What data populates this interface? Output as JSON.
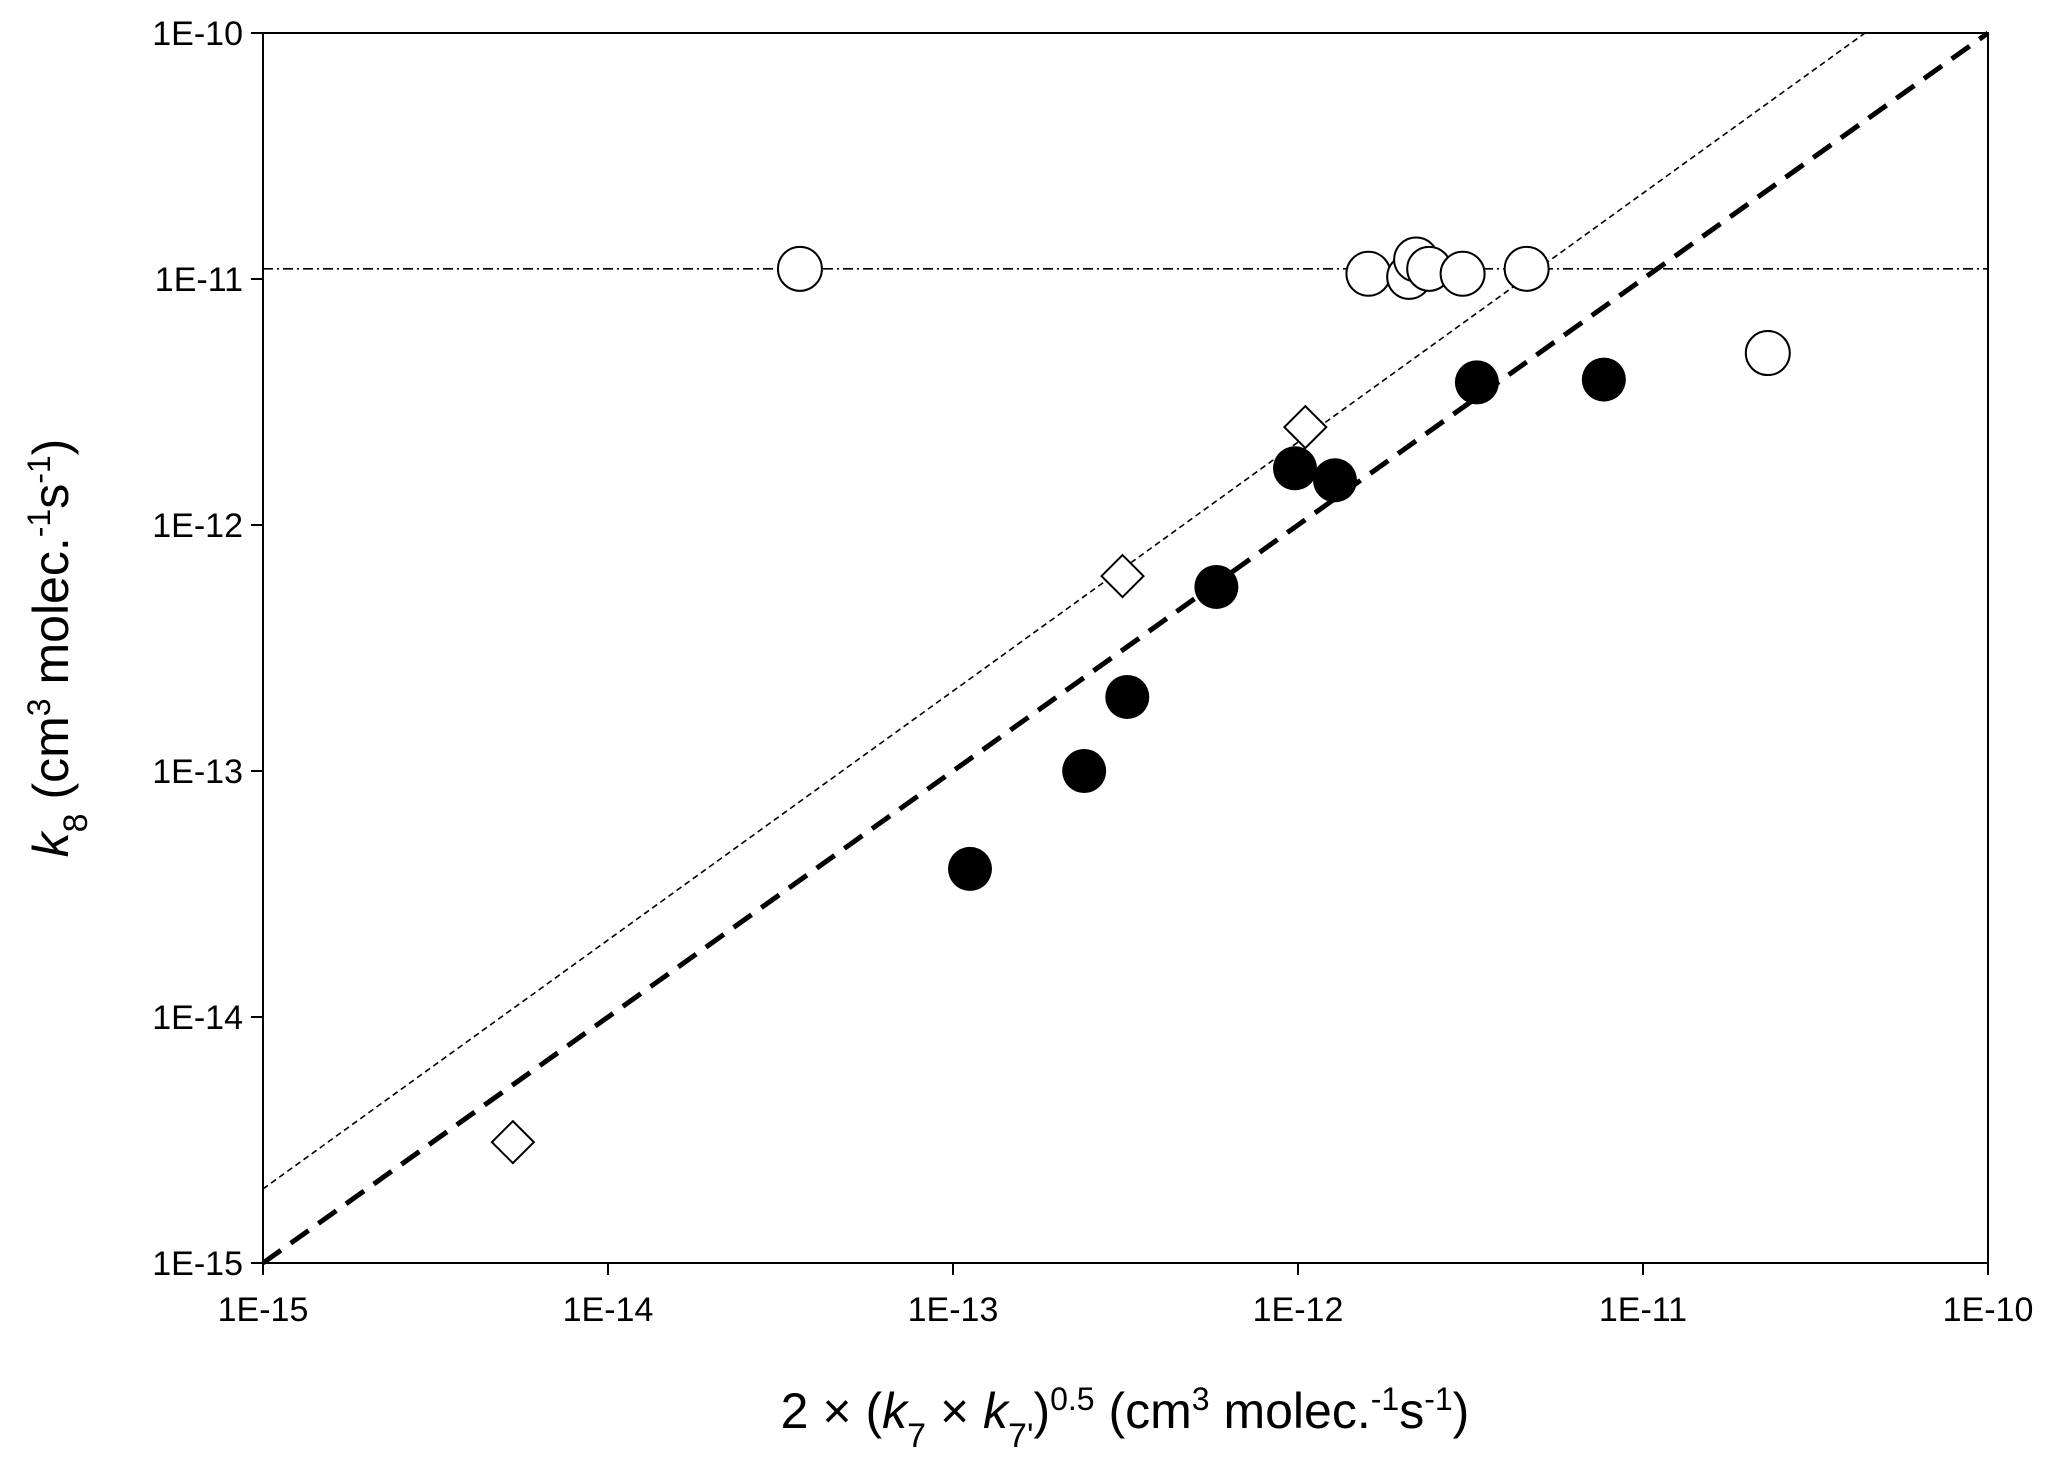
{
  "chart_data": {
    "type": "scatter",
    "title": "",
    "xscale": "log",
    "yscale": "log",
    "xlim": [
      1e-15,
      1e-10
    ],
    "ylim": [
      1e-15,
      1e-10
    ],
    "grid": false,
    "legend": "none",
    "xlabel": {
      "prefix": "2 × (",
      "k7": "k",
      "k7_sub": "7",
      "times": " × ",
      "k7p": "k",
      "k7p_sub": "7'",
      "close": ")",
      "exp": "0.5",
      "units_open": " (cm",
      "units_exp3": "3",
      "units_mid": " molec.",
      "units_exp_m1a": "-1",
      "units_s": "s",
      "units_exp_m1b": "-1",
      "units_close": ")"
    },
    "ylabel": {
      "k": "k",
      "k_sub": "8",
      "units_open": " (cm",
      "units_exp3": "3",
      "units_mid": " molec.",
      "units_exp_m1a": "-1",
      "units_s": "s",
      "units_exp_m1b": "-1",
      "units_close": ")"
    },
    "xticks": [
      {
        "value": 1e-15,
        "label": "1E-15"
      },
      {
        "value": 1e-14,
        "label": "1E-14"
      },
      {
        "value": 1e-13,
        "label": "1E-13"
      },
      {
        "value": 1e-12,
        "label": "1E-12"
      },
      {
        "value": 1e-11,
        "label": "1E-11"
      },
      {
        "value": 1e-10,
        "label": "1E-10"
      }
    ],
    "yticks": [
      {
        "value": 1e-15,
        "label": "1E-15"
      },
      {
        "value": 1e-14,
        "label": "1E-14"
      },
      {
        "value": 1e-13,
        "label": "1E-13"
      },
      {
        "value": 1e-12,
        "label": "1E-12"
      },
      {
        "value": 1e-11,
        "label": "1E-11"
      },
      {
        "value": 1e-10,
        "label": "1E-10"
      }
    ],
    "series": [
      {
        "marker": "filled-circle",
        "color": "#000000",
        "points": [
          {
            "x": 1.12e-13,
            "y": 4e-14
          },
          {
            "x": 2.4e-13,
            "y": 1e-13
          },
          {
            "x": 3.2e-13,
            "y": 2e-13
          },
          {
            "x": 5.8e-13,
            "y": 5.6e-13
          },
          {
            "x": 9.8e-13,
            "y": 1.7e-12
          },
          {
            "x": 1.28e-12,
            "y": 1.52e-12
          },
          {
            "x": 3.3e-12,
            "y": 3.8e-12
          },
          {
            "x": 7.7e-12,
            "y": 3.9e-12
          }
        ]
      },
      {
        "marker": "open-circle",
        "color": "#000000",
        "points": [
          {
            "x": 3.6e-14,
            "y": 1.1e-11
          },
          {
            "x": 1.6e-12,
            "y": 1.05e-11
          },
          {
            "x": 2.1e-12,
            "y": 1.02e-11
          },
          {
            "x": 2.2e-12,
            "y": 1.2e-11
          },
          {
            "x": 2.4e-12,
            "y": 1.1e-11
          },
          {
            "x": 3e-12,
            "y": 1.05e-11
          },
          {
            "x": 4.6e-12,
            "y": 1.1e-11
          },
          {
            "x": 2.3e-11,
            "y": 5e-12
          }
        ]
      },
      {
        "marker": "open-diamond",
        "color": "#000000",
        "points": [
          {
            "x": 5.3e-15,
            "y": 3.1e-15
          },
          {
            "x": 3.1e-13,
            "y": 6.2e-13
          },
          {
            "x": 1.05e-12,
            "y": 2.5e-12
          }
        ]
      }
    ],
    "reference_lines": [
      {
        "style": "thick-dashed",
        "from": [
          1e-15,
          1e-15
        ],
        "to": [
          1e-10,
          1e-10
        ]
      },
      {
        "style": "thin-dashed",
        "from": [
          1e-15,
          2e-15
        ],
        "to": [
          4.4e-11,
          1e-10
        ]
      },
      {
        "style": "dash-dot",
        "from": [
          1e-15,
          1.1e-11
        ],
        "to": [
          1e-10,
          1.1e-11
        ]
      }
    ]
  }
}
